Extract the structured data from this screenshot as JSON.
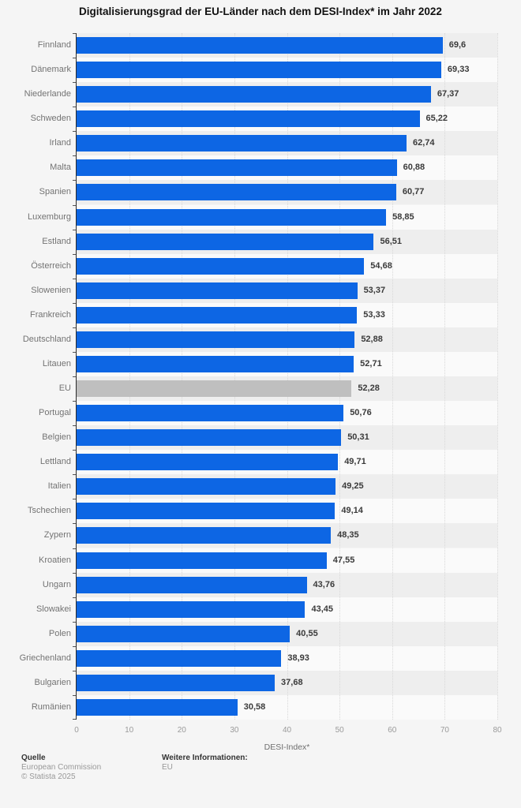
{
  "title": "Digitalisierungsgrad der EU-Länder nach dem DESI-Index* im Jahr 2022",
  "chart_data": {
    "type": "bar",
    "orientation": "horizontal",
    "title": "Digitalisierungsgrad der EU-Länder nach dem DESI-Index* im Jahr 2022",
    "categories": [
      "Finnland",
      "Dänemark",
      "Niederlande",
      "Schweden",
      "Irland",
      "Malta",
      "Spanien",
      "Luxemburg",
      "Estland",
      "Österreich",
      "Slowenien",
      "Frankreich",
      "Deutschland",
      "Litauen",
      "EU",
      "Portugal",
      "Belgien",
      "Lettland",
      "Italien",
      "Tschechien",
      "Zypern",
      "Kroatien",
      "Ungarn",
      "Slowakei",
      "Polen",
      "Griechenland",
      "Bulgarien",
      "Rumänien"
    ],
    "values": [
      69.6,
      69.33,
      67.37,
      65.22,
      62.74,
      60.88,
      60.77,
      58.85,
      56.51,
      54.68,
      53.37,
      53.33,
      52.88,
      52.71,
      52.28,
      50.76,
      50.31,
      49.71,
      49.25,
      49.14,
      48.35,
      47.55,
      43.76,
      43.45,
      40.55,
      38.93,
      37.68,
      30.58
    ],
    "value_labels": [
      "69,6",
      "69,33",
      "67,37",
      "65,22",
      "62,74",
      "60,88",
      "60,77",
      "58,85",
      "56,51",
      "54,68",
      "53,37",
      "53,33",
      "52,88",
      "52,71",
      "52,28",
      "50,76",
      "50,31",
      "49,71",
      "49,25",
      "49,14",
      "48,35",
      "47,55",
      "43,76",
      "43,45",
      "40,55",
      "38,93",
      "37,68",
      "30,58"
    ],
    "highlight_category": "EU",
    "bar_color": "#0d66e4",
    "highlight_color": "#bfbfbf",
    "xlabel": "DESI-Index*",
    "xlim": [
      0,
      80
    ],
    "x_ticks": [
      0,
      10,
      20,
      30,
      40,
      50,
      60,
      70,
      80
    ],
    "grid": "vertical-dotted",
    "legend": "none"
  },
  "footer": {
    "source_label": "Quelle",
    "source_value": "European Commission",
    "copyright": "© Statista 2025",
    "info_label": "Weitere Informationen:",
    "info_value": "EU"
  }
}
